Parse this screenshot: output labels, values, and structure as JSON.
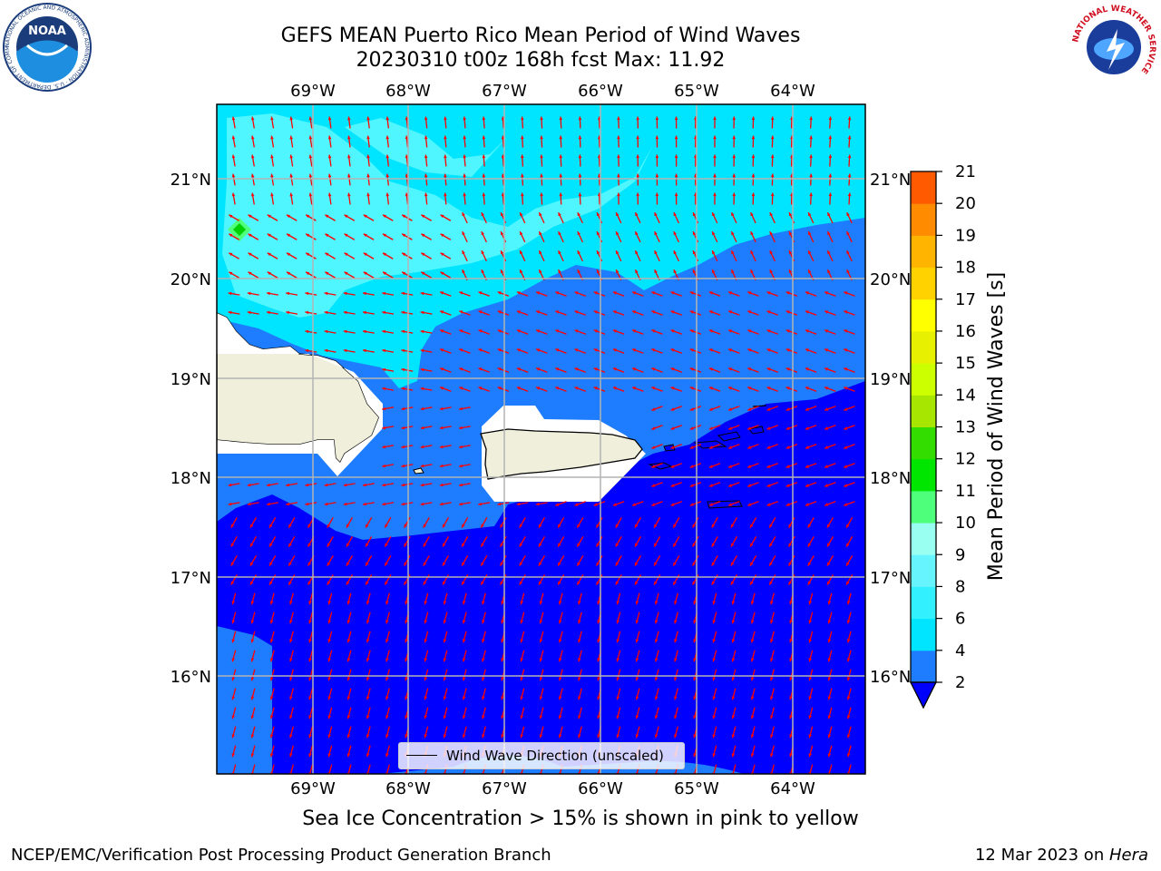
{
  "header": {
    "title_line1": "GEFS MEAN Puerto Rico Mean Period of Wind Waves",
    "title_line2": "20230310 t00z 168h fcst   Max: 11.92"
  },
  "logos": {
    "left": "NOAA",
    "left_ring": "NATIONAL OCEANIC AND ATMOSPHERIC ADMINISTRATION · U.S. DEPARTMENT OF COMMERCE",
    "right_ring": "NATIONAL WEATHER SERVICE"
  },
  "map": {
    "lon_labels": [
      "69°W",
      "68°W",
      "67°W",
      "66°W",
      "65°W",
      "64°W"
    ],
    "lat_labels": [
      "21°N",
      "20°N",
      "19°N",
      "18°N",
      "17°N",
      "16°N"
    ],
    "legend_label": "Wind Wave Direction (unscaled)"
  },
  "colorbar": {
    "title": "Mean Period of Wind Waves [s]",
    "ticks": [
      "2",
      "4",
      "6",
      "8",
      "9",
      "10",
      "11",
      "12",
      "13",
      "14",
      "15",
      "16",
      "17",
      "18",
      "19",
      "20",
      "21"
    ],
    "colors": [
      "#1e7cff",
      "#00e5ff",
      "#33f0ff",
      "#66f5ff",
      "#99fff0",
      "#4dff7a",
      "#00e600",
      "#33dd00",
      "#a6e600",
      "#ccff00",
      "#e6f000",
      "#ffff00",
      "#ffd200",
      "#ffb400",
      "#ff8c00",
      "#ff5a00",
      "#ff2800",
      "#ff0000"
    ],
    "under_color": "#0000ff"
  },
  "colors": {
    "low_period": "#0000ff",
    "mid_period": "#1e7cff",
    "high_period": "#00e5ff",
    "higher_period": "#4ff6ff",
    "land": "#efefdc",
    "arrows": "#ff0000"
  },
  "footer": {
    "note": "Sea Ice Concentration > 15% is shown in pink to yellow",
    "left": "NCEP/EMC/Verification Post Processing Product Generation Branch",
    "date": "12 Mar 2023 on ",
    "host": "Hera"
  }
}
